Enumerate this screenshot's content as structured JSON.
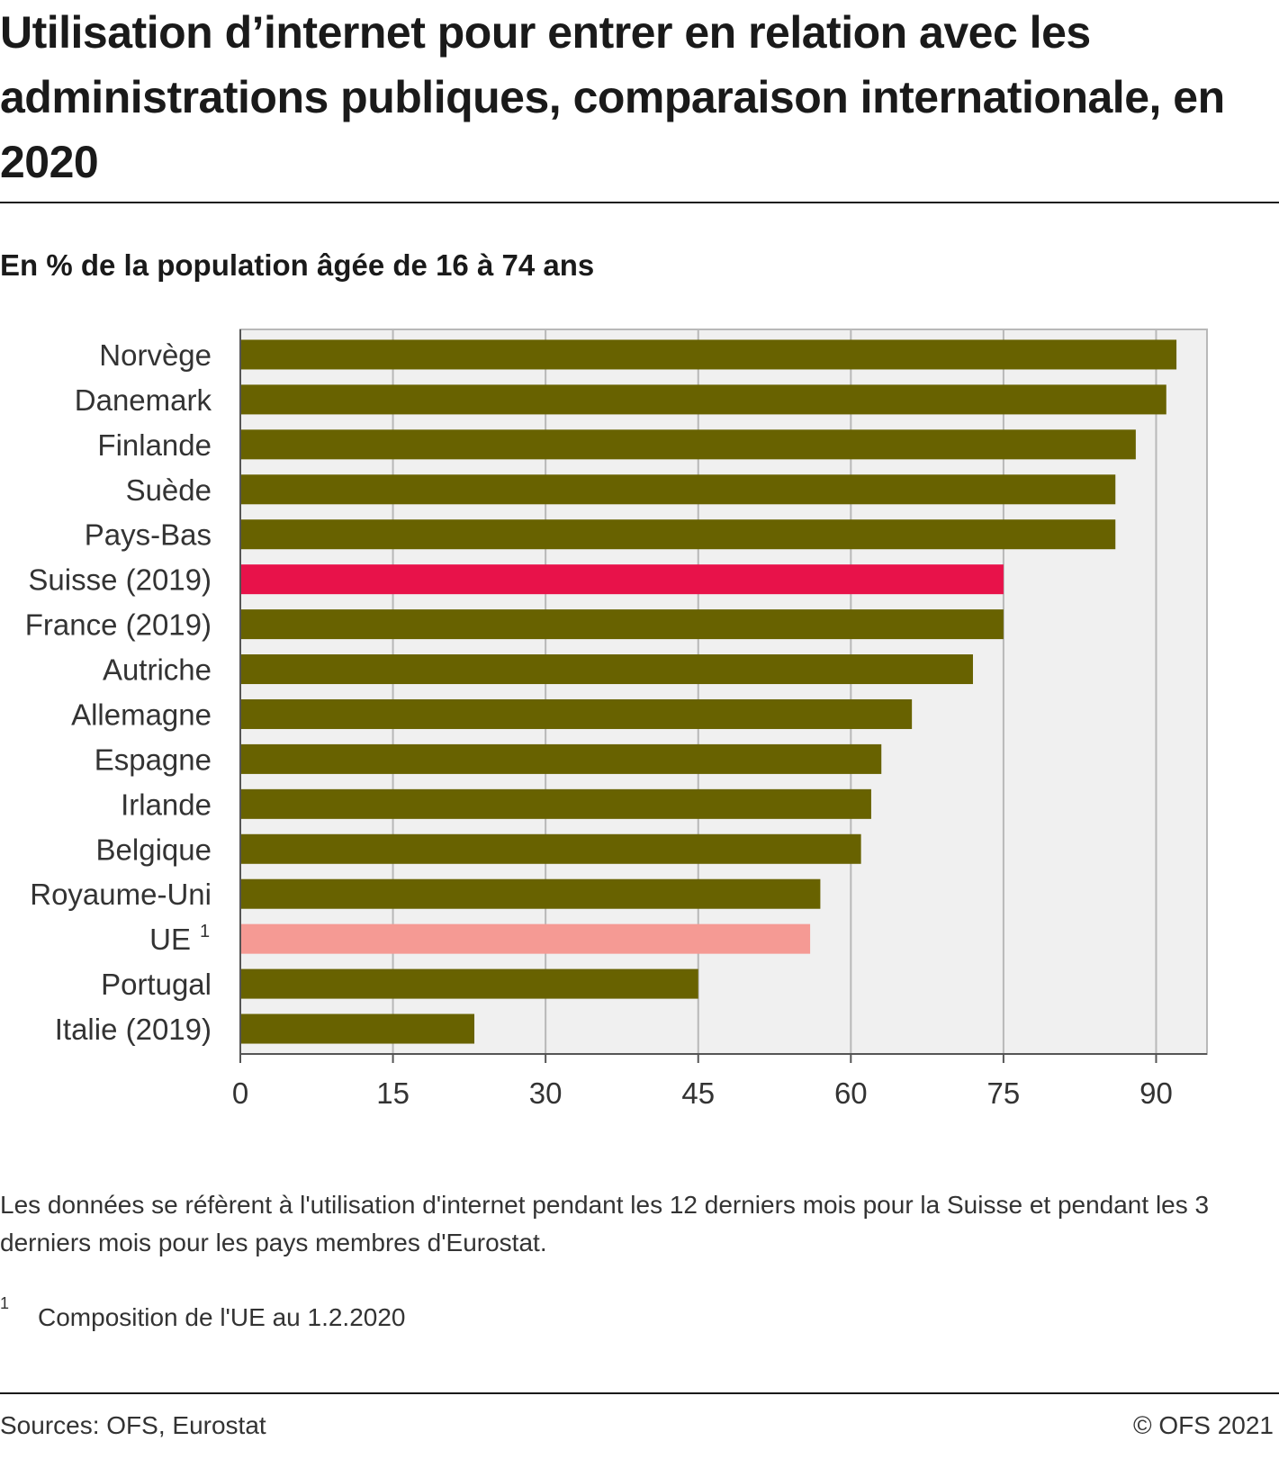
{
  "title": "Utilisation d’internet pour entrer en relation avec les administrations publiques, comparaison internationale, en 2020",
  "subtitle": "En % de la population âgée de 16 à 74 ans",
  "note": "Les données se réfèrent à l'utilisation d'internet pendant les 12 derniers mois pour la Suisse et pendant les 3 derniers mois pour les pays membres d'Eurostat.",
  "footnote": {
    "marker": "1",
    "text": "Composition de l'UE au 1.2.2020"
  },
  "source": "Sources: OFS, Eurostat",
  "copyright": "© OFS 2021",
  "colors": {
    "default": "#686200",
    "highlight": "#e8124a",
    "eu": "#f59a94",
    "plot_bg": "#f0f0f0",
    "grid": "#b8b8b8"
  },
  "chart_data": {
    "type": "bar",
    "orientation": "horizontal",
    "categories": [
      "Norvège",
      "Danemark",
      "Finlande",
      "Suède",
      "Pays-Bas",
      "Suisse (2019)",
      "France (2019)",
      "Autriche",
      "Allemagne",
      "Espagne",
      "Irlande",
      "Belgique",
      "Royaume-Uni",
      "UE",
      "Portugal",
      "Italie (2019)"
    ],
    "category_superscripts": [
      "",
      "",
      "",
      "",
      "",
      "",
      "",
      "",
      "",
      "",
      "",
      "",
      "",
      "1",
      "",
      ""
    ],
    "values": [
      92,
      91,
      88,
      86,
      86,
      75,
      75,
      72,
      66,
      63,
      62,
      61,
      57,
      56,
      45,
      23
    ],
    "bar_colors": [
      "default",
      "default",
      "default",
      "default",
      "default",
      "highlight",
      "default",
      "default",
      "default",
      "default",
      "default",
      "default",
      "default",
      "eu",
      "default",
      "default"
    ],
    "xlim": [
      0,
      95
    ],
    "xticks": [
      0,
      15,
      30,
      45,
      60,
      75,
      90
    ],
    "grid": true,
    "legend": "none"
  }
}
